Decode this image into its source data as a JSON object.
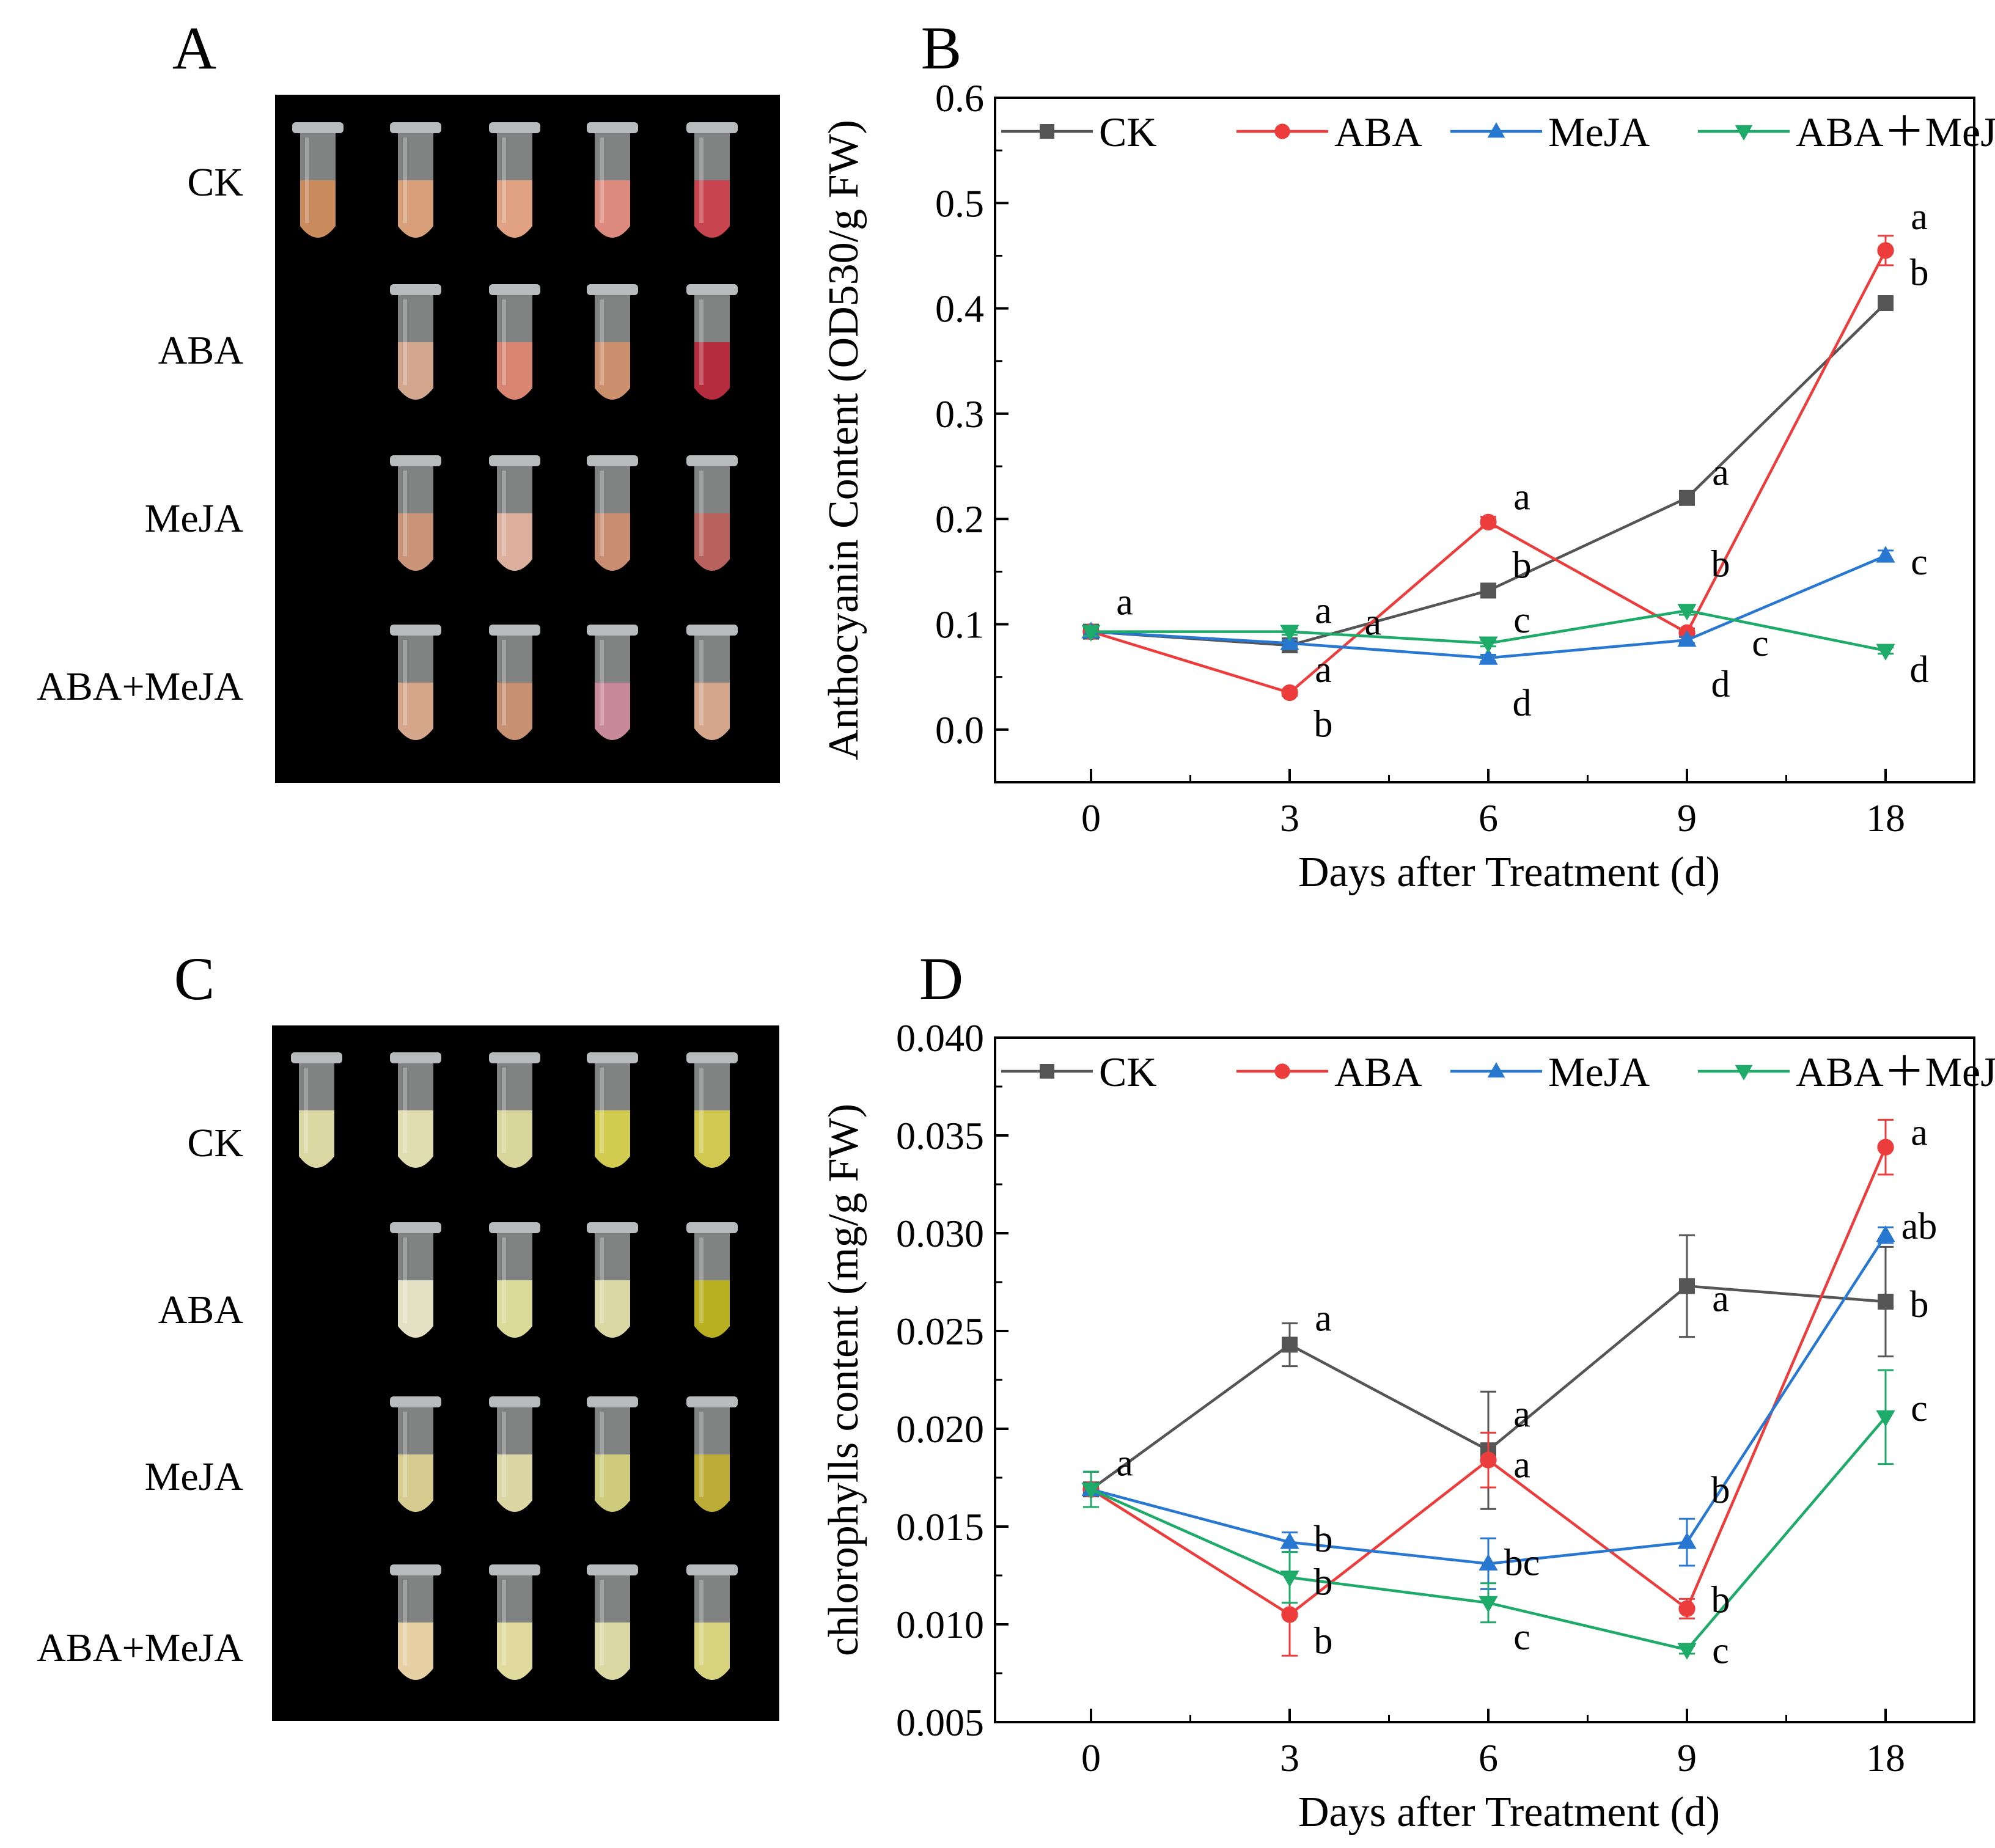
{
  "panels": {
    "A": {
      "letter": "A",
      "rows": [
        "CK",
        "ABA",
        "MeJA",
        "ABA+MeJA"
      ]
    },
    "C": {
      "letter": "C",
      "rows": [
        "CK",
        "ABA",
        "MeJA",
        "ABA+MeJA"
      ]
    }
  },
  "tube_colors": {
    "A": [
      [
        "#c98a5c",
        "#d8a07a",
        "#e0a282",
        "#dc8a7e",
        "#c8444e"
      ],
      [
        null,
        "#d2a68c",
        "#d88672",
        "#cc906e",
        "#b42c3e"
      ],
      [
        null,
        "#c99478",
        "#dcb09c",
        "#c98e72",
        "#b8625e"
      ],
      [
        null,
        "#d6a68a",
        "#c89272",
        "#c88a9a",
        "#d4a68c"
      ]
    ],
    "C": [
      [
        "#dcd8a4",
        "#e0ddb0",
        "#d8d69a",
        "#d2cc50",
        "#d0c850"
      ],
      [
        null,
        "#e4e0c4",
        "#dcda98",
        "#dcd8a4",
        "#b8b020"
      ],
      [
        null,
        "#d6cc90",
        "#dcd6a4",
        "#cecc7c",
        "#bcac38"
      ],
      [
        null,
        "#e6d0a4",
        "#e0da9c",
        "#dcd8a4",
        "#d6d27e"
      ]
    ]
  },
  "series_colors": {
    "CK": "#555555",
    "ABA": "#ec3c3c",
    "MeJA": "#2878d2",
    "ABA+MeJA": "#1eaa68"
  },
  "chart_data": [
    {
      "panel": "B",
      "type": "line",
      "xlabel": "Days after Treatment (d)",
      "ylabel": "Anthocyanin Content (OD530/g FW)",
      "x": [
        "0",
        "3",
        "6",
        "9",
        "18"
      ],
      "ylim": [
        -0.05,
        0.6
      ],
      "yticks": [
        "0.0",
        "0.1",
        "0.2",
        "0.3",
        "0.4",
        "0.5",
        "0.6"
      ],
      "legend": [
        "CK",
        "ABA",
        "MeJA",
        "ABA＋MeJA"
      ],
      "series": [
        {
          "name": "CK",
          "marker": "square",
          "values": [
            0.093,
            0.08,
            0.132,
            0.22,
            0.405
          ],
          "errors": [
            0.004,
            0.003,
            0.005,
            0.006,
            0.006
          ]
        },
        {
          "name": "ABA",
          "marker": "circle",
          "values": [
            0.093,
            0.035,
            0.197,
            0.092,
            0.455
          ],
          "errors": [
            0.004,
            0.003,
            0.005,
            0.004,
            0.014
          ]
        },
        {
          "name": "MeJA",
          "marker": "triangle-up",
          "values": [
            0.093,
            0.082,
            0.068,
            0.085,
            0.165
          ],
          "errors": [
            0.004,
            0.003,
            0.003,
            0.003,
            0.005
          ]
        },
        {
          "name": "ABA+MeJA",
          "marker": "triangle-down",
          "values": [
            0.093,
            0.093,
            0.082,
            0.113,
            0.075
          ],
          "errors": [
            0.004,
            0.003,
            0.003,
            0.004,
            0.003
          ]
        }
      ],
      "annotations": [
        {
          "text": "a",
          "x": "0",
          "y": 0.122
        },
        {
          "text": "a",
          "x": "3",
          "y": 0.114
        },
        {
          "text": "a",
          "x": "3",
          "y": 0.103,
          "dx": 0.25
        },
        {
          "text": "a",
          "x": "3",
          "y": 0.058
        },
        {
          "text": "b",
          "x": "3",
          "y": 0.006
        },
        {
          "text": "a",
          "x": "6",
          "y": 0.222
        },
        {
          "text": "b",
          "x": "6",
          "y": 0.157
        },
        {
          "text": "c",
          "x": "6",
          "y": 0.105
        },
        {
          "text": "d",
          "x": "6",
          "y": 0.026
        },
        {
          "text": "a",
          "x": "9",
          "y": 0.245
        },
        {
          "text": "b",
          "x": "9",
          "y": 0.158
        },
        {
          "text": "c",
          "x": "9",
          "y": 0.083,
          "dx": 0.2
        },
        {
          "text": "d",
          "x": "9",
          "y": 0.044
        },
        {
          "text": "a",
          "x": "18",
          "y": 0.488
        },
        {
          "text": "b",
          "x": "18",
          "y": 0.435
        },
        {
          "text": "c",
          "x": "18",
          "y": 0.16
        },
        {
          "text": "d",
          "x": "18",
          "y": 0.058
        }
      ]
    },
    {
      "panel": "D",
      "type": "line",
      "xlabel": "Days after Treatment (d)",
      "ylabel": "chlorophylls content (mg/g FW)",
      "x": [
        "0",
        "3",
        "6",
        "9",
        "18"
      ],
      "ylim": [
        0.005,
        0.04
      ],
      "yticks": [
        "0.005",
        "0.010",
        "0.015",
        "0.020",
        "0.025",
        "0.030",
        "0.035",
        "0.040"
      ],
      "legend": [
        "CK",
        "ABA",
        "MeJA",
        "ABA＋MeJA"
      ],
      "series": [
        {
          "name": "CK",
          "marker": "square",
          "values": [
            0.0169,
            0.0243,
            0.0189,
            0.0273,
            0.0265
          ],
          "errors": [
            0.0009,
            0.0011,
            0.003,
            0.0026,
            0.0028
          ]
        },
        {
          "name": "ABA",
          "marker": "circle",
          "values": [
            0.0169,
            0.0105,
            0.0184,
            0.0108,
            0.0344
          ],
          "errors": [
            0.0009,
            0.0021,
            0.0014,
            0.0005,
            0.0014
          ]
        },
        {
          "name": "MeJA",
          "marker": "triangle-up",
          "values": [
            0.0169,
            0.0142,
            0.0131,
            0.0142,
            0.0299
          ],
          "errors": [
            0.0009,
            0.0005,
            0.0013,
            0.0012,
            0.0004
          ]
        },
        {
          "name": "ABA+MeJA",
          "marker": "triangle-down",
          "values": [
            0.0169,
            0.0124,
            0.0111,
            0.0087,
            0.0206
          ],
          "errors": [
            0.0009,
            0.0013,
            0.001,
            0.0002,
            0.0024
          ]
        }
      ],
      "annotations": [
        {
          "text": "a",
          "x": "0",
          "y": 0.0183
        },
        {
          "text": "a",
          "x": "3",
          "y": 0.0257
        },
        {
          "text": "b",
          "x": "3",
          "y": 0.0144
        },
        {
          "text": "b",
          "x": "3",
          "y": 0.0122
        },
        {
          "text": "b",
          "x": "3",
          "y": 0.0092
        },
        {
          "text": "a",
          "x": "6",
          "y": 0.0208
        },
        {
          "text": "a",
          "x": "6",
          "y": 0.0182
        },
        {
          "text": "bc",
          "x": "6",
          "y": 0.0132
        },
        {
          "text": "c",
          "x": "6",
          "y": 0.0094
        },
        {
          "text": "a",
          "x": "9",
          "y": 0.0267
        },
        {
          "text": "b",
          "x": "9",
          "y": 0.0169
        },
        {
          "text": "b",
          "x": "9",
          "y": 0.0113
        },
        {
          "text": "c",
          "x": "9",
          "y": 0.0087
        },
        {
          "text": "a",
          "x": "18",
          "y": 0.0352
        },
        {
          "text": "ab",
          "x": "18",
          "y": 0.0304
        },
        {
          "text": "b",
          "x": "18",
          "y": 0.0264
        },
        {
          "text": "c",
          "x": "18",
          "y": 0.0211
        }
      ]
    }
  ]
}
